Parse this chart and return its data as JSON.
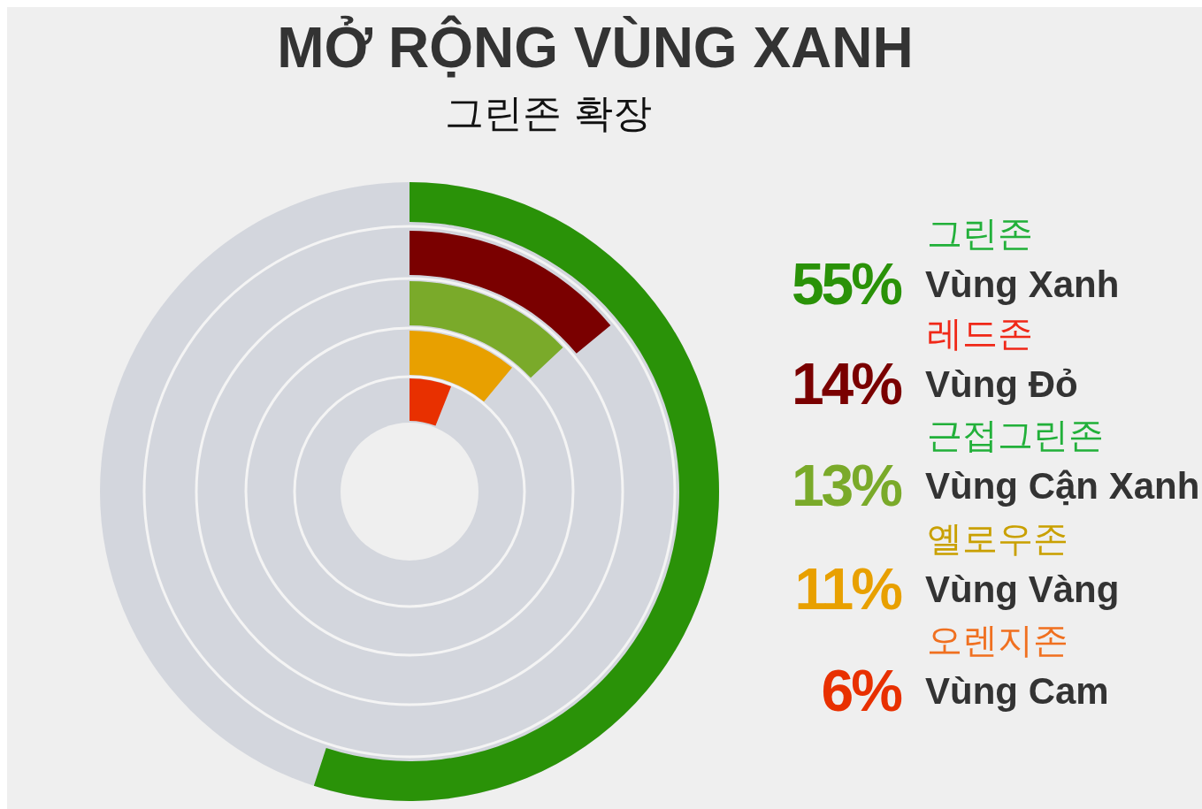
{
  "chart_data": {
    "type": "other",
    "title": "MỞ RỘNG VÙNG XANH",
    "subtitle": "그린존 확장",
    "categories": [
      "Vùng Xanh",
      "Vùng Đỏ",
      "Vùng Cận Xanh",
      "Vùng Vàng",
      "Vùng Cam"
    ],
    "values": [
      55,
      14,
      13,
      11,
      6
    ],
    "colors": [
      "#2a9208",
      "#7a0000",
      "#7aaa2a",
      "#e8a000",
      "#e83000"
    ],
    "value_labels": [
      "55%",
      "14%",
      "13%",
      "11%",
      "6%"
    ],
    "annotations": [
      {
        "text": "그린존",
        "x": "Vùng Xanh"
      },
      {
        "text": "레드존",
        "x": "Vùng Đỏ"
      },
      {
        "text": "근접그린존",
        "x": "Vùng Cận Xanh"
      },
      {
        "text": "옐로우존",
        "x": "Vùng Vàng"
      },
      {
        "text": "오렌지존",
        "x": "Vùng Cam"
      }
    ]
  }
}
